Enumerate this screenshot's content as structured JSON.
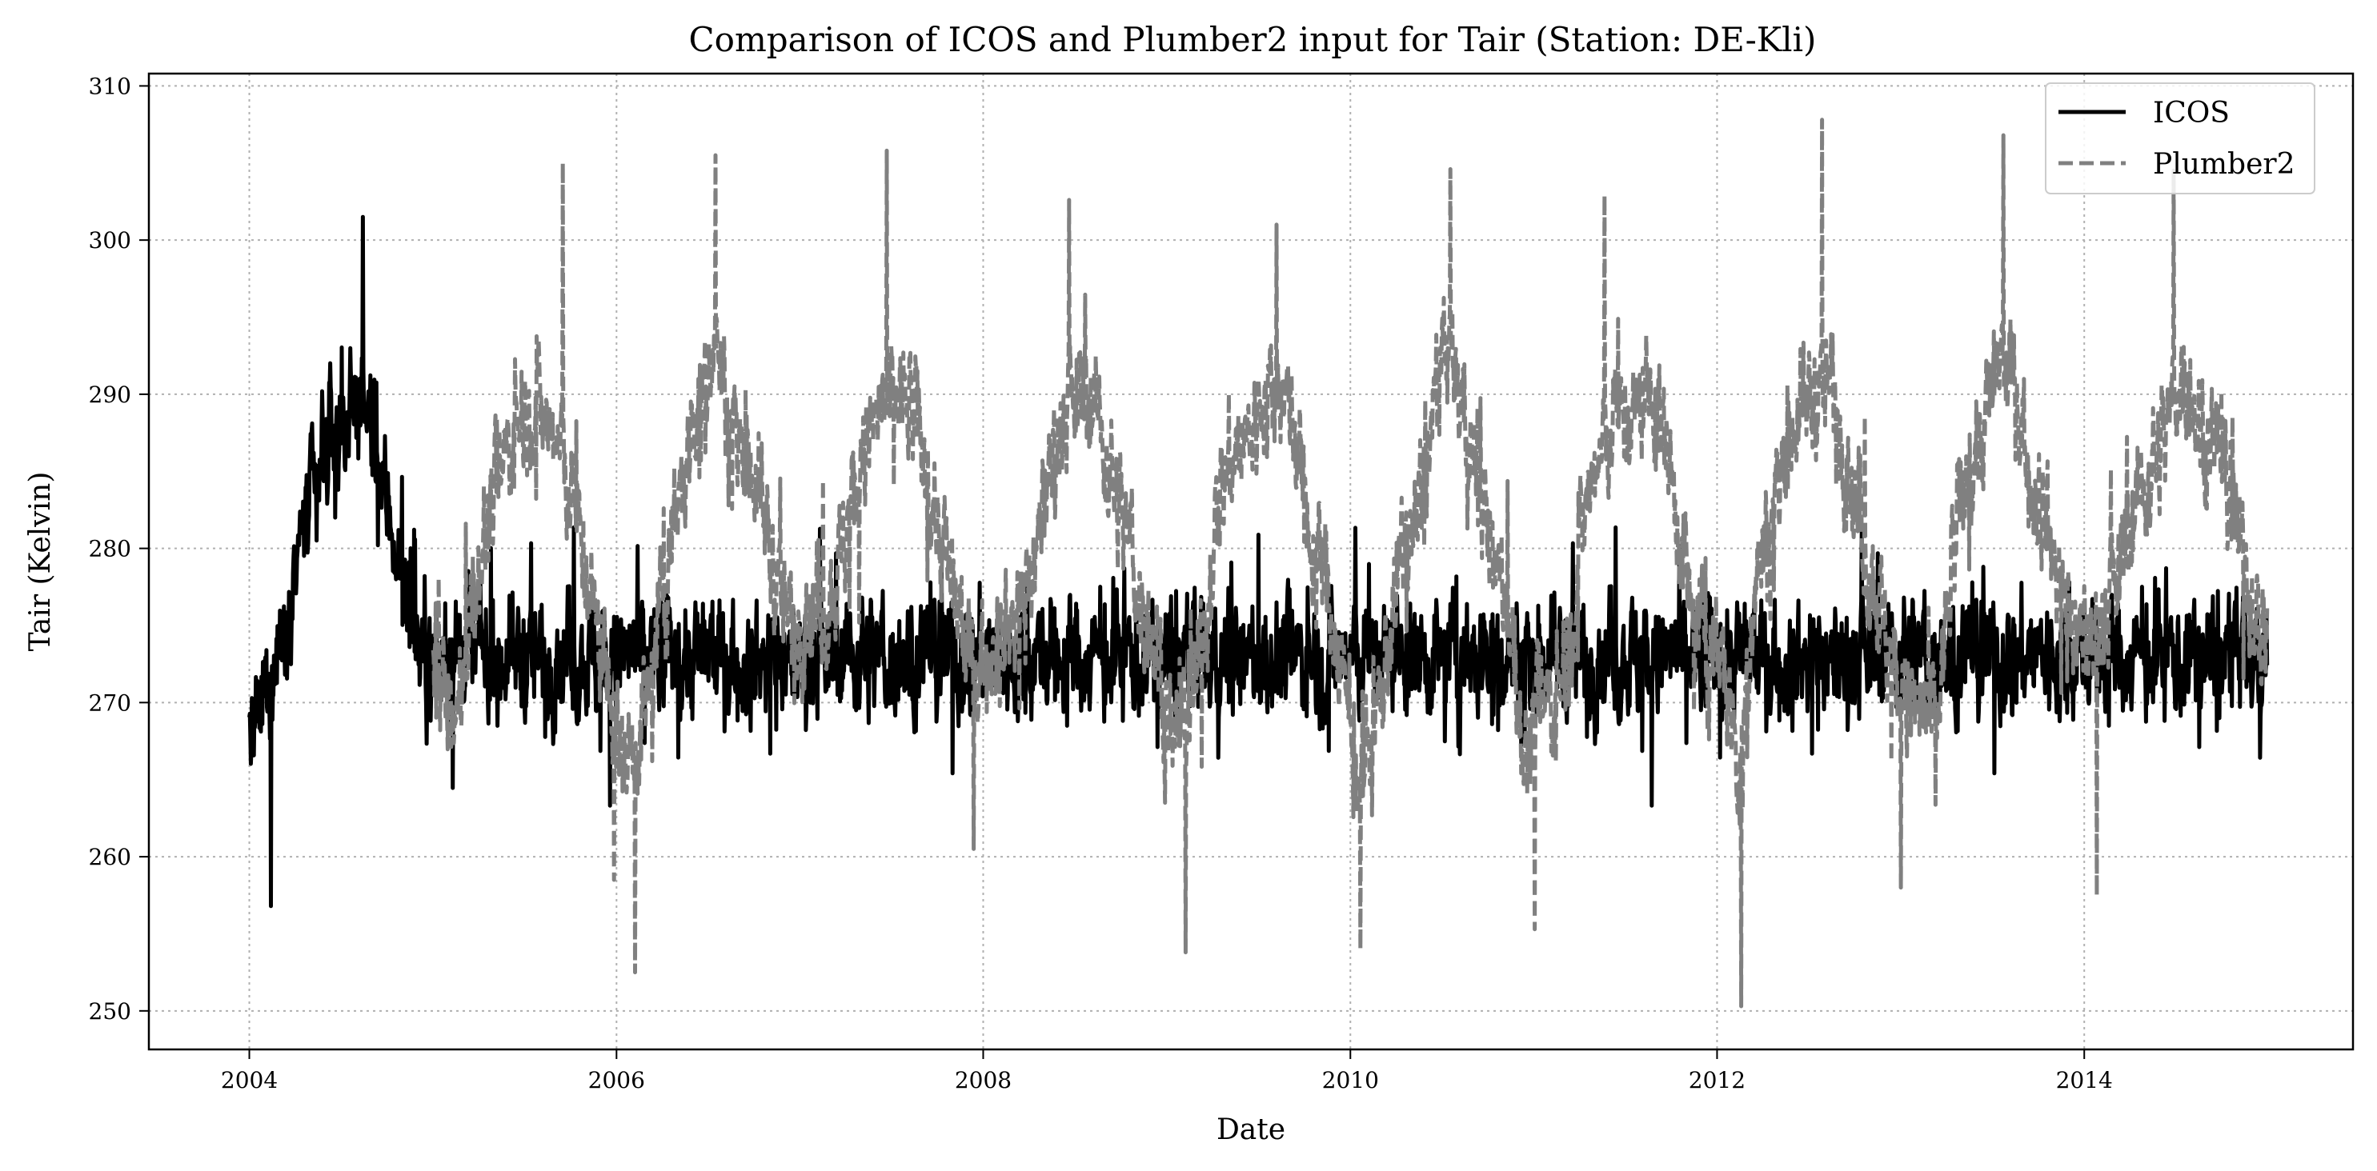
{
  "chart_data": {
    "type": "line",
    "title": "Comparison of ICOS and Plumber2 input for Tair (Station: DE-Kli)",
    "xlabel": "Date",
    "ylabel": "Tair (Kelvin)",
    "xlim": [
      "2003-06-15",
      "2015-06-20"
    ],
    "ylim": [
      247.5,
      310.8
    ],
    "x_ticks": [
      "2004",
      "2006",
      "2008",
      "2010",
      "2012",
      "2014"
    ],
    "y_ticks": [
      250,
      260,
      270,
      280,
      290,
      300,
      310
    ],
    "grid": true,
    "legend_position": "top-right",
    "series": [
      {
        "name": "ICOS",
        "color": "#000000",
        "linestyle": "solid",
        "x_range": [
          "2004-01-01",
          "2014-12-31"
        ],
        "monthly_mean": [
          [
            "2004-01",
            268
          ],
          [
            "2004-02",
            272
          ],
          [
            "2004-03",
            276
          ],
          [
            "2004-04",
            281
          ],
          [
            "2004-05",
            284
          ],
          [
            "2004-06",
            287
          ],
          [
            "2004-07",
            289
          ],
          [
            "2004-08",
            290
          ],
          [
            "2004-09",
            285
          ],
          [
            "2004-10",
            281
          ],
          [
            "2004-11",
            276
          ],
          [
            "2004-12",
            273
          ]
        ],
        "annual_extremes": [
          [
            2004,
            256.8,
            301.5
          ]
        ]
      },
      {
        "name": "Plumber2",
        "color": "#808080",
        "linestyle": "dashed",
        "x_range": [
          "2005-01-01",
          "2014-12-31"
        ],
        "monthly_mean": [
          [
            "2005-01",
            272
          ],
          [
            "2005-02",
            268
          ],
          [
            "2005-03",
            276
          ],
          [
            "2005-04",
            281
          ],
          [
            "2005-05",
            285
          ],
          [
            "2005-06",
            288
          ],
          [
            "2005-07",
            290
          ],
          [
            "2005-08",
            288
          ],
          [
            "2005-09",
            286
          ],
          [
            "2005-10",
            282
          ],
          [
            "2005-11",
            276
          ],
          [
            "2005-12",
            271
          ],
          [
            "2006-01",
            266
          ],
          [
            "2006-02",
            268
          ],
          [
            "2006-03",
            272
          ],
          [
            "2006-04",
            280
          ],
          [
            "2006-05",
            285
          ],
          [
            "2006-06",
            289
          ],
          [
            "2006-07",
            294
          ],
          [
            "2006-08",
            288
          ],
          [
            "2006-09",
            287
          ],
          [
            "2006-10",
            283
          ],
          [
            "2006-11",
            278
          ],
          [
            "2006-12",
            275
          ],
          [
            "2007-01",
            276
          ],
          [
            "2007-02",
            276
          ],
          [
            "2007-03",
            278
          ],
          [
            "2007-04",
            283
          ],
          [
            "2007-05",
            287
          ],
          [
            "2007-06",
            289
          ],
          [
            "2007-07",
            290
          ],
          [
            "2007-08",
            289
          ],
          [
            "2007-09",
            284
          ],
          [
            "2007-10",
            280
          ],
          [
            "2007-11",
            275
          ],
          [
            "2007-12",
            272
          ],
          [
            "2008-01",
            274
          ],
          [
            "2008-02",
            275
          ],
          [
            "2008-03",
            276
          ],
          [
            "2008-04",
            280
          ],
          [
            "2008-05",
            286
          ],
          [
            "2008-06",
            289
          ],
          [
            "2008-07",
            290
          ],
          [
            "2008-08",
            289
          ],
          [
            "2008-09",
            284
          ],
          [
            "2008-10",
            281
          ],
          [
            "2008-11",
            276
          ],
          [
            "2008-12",
            273
          ],
          [
            "2009-01",
            267
          ],
          [
            "2009-02",
            270
          ],
          [
            "2009-03",
            274
          ],
          [
            "2009-04",
            284
          ],
          [
            "2009-05",
            286
          ],
          [
            "2009-06",
            287
          ],
          [
            "2009-07",
            290
          ],
          [
            "2009-08",
            291
          ],
          [
            "2009-09",
            287
          ],
          [
            "2009-10",
            280
          ],
          [
            "2009-11",
            278
          ],
          [
            "2009-12",
            272
          ],
          [
            "2010-01",
            265
          ],
          [
            "2010-02",
            267
          ],
          [
            "2010-03",
            274
          ],
          [
            "2010-04",
            280
          ],
          [
            "2010-05",
            282
          ],
          [
            "2010-06",
            289
          ],
          [
            "2010-07",
            293
          ],
          [
            "2010-08",
            289
          ],
          [
            "2010-09",
            284
          ],
          [
            "2010-10",
            279
          ],
          [
            "2010-11",
            276
          ],
          [
            "2010-12",
            266
          ],
          [
            "2011-01",
            270
          ],
          [
            "2011-02",
            270
          ],
          [
            "2011-03",
            275
          ],
          [
            "2011-04",
            283
          ],
          [
            "2011-05",
            286
          ],
          [
            "2011-06",
            289
          ],
          [
            "2011-07",
            288
          ],
          [
            "2011-08",
            290
          ],
          [
            "2011-09",
            288
          ],
          [
            "2011-10",
            282
          ],
          [
            "2011-11",
            275
          ],
          [
            "2011-12",
            274
          ],
          [
            "2012-01",
            273
          ],
          [
            "2012-02",
            264
          ],
          [
            "2012-03",
            278
          ],
          [
            "2012-04",
            281
          ],
          [
            "2012-05",
            287
          ],
          [
            "2012-06",
            289
          ],
          [
            "2012-07",
            290
          ],
          [
            "2012-08",
            291
          ],
          [
            "2012-09",
            286
          ],
          [
            "2012-10",
            281
          ],
          [
            "2012-11",
            277
          ],
          [
            "2012-12",
            272
          ],
          [
            "2013-01",
            270
          ],
          [
            "2013-02",
            269
          ],
          [
            "2013-03",
            269
          ],
          [
            "2013-04",
            280
          ],
          [
            "2013-05",
            285
          ],
          [
            "2013-06",
            288
          ],
          [
            "2013-07",
            292
          ],
          [
            "2013-08",
            291
          ],
          [
            "2013-09",
            285
          ],
          [
            "2013-10",
            283
          ],
          [
            "2013-11",
            277
          ],
          [
            "2013-12",
            275
          ],
          [
            "2014-01",
            274
          ],
          [
            "2014-02",
            276
          ],
          [
            "2014-03",
            279
          ],
          [
            "2014-04",
            283
          ],
          [
            "2014-05",
            285
          ],
          [
            "2014-06",
            288
          ],
          [
            "2014-07",
            292
          ],
          [
            "2014-08",
            288
          ],
          [
            "2014-09",
            287
          ],
          [
            "2014-10",
            284
          ],
          [
            "2014-11",
            279
          ],
          [
            "2014-12",
            275
          ]
        ],
        "annual_extremes": [
          [
            2005,
            258.5,
            305
          ],
          [
            2006,
            252.5,
            305.5
          ],
          [
            2007,
            260.5,
            305.8
          ],
          [
            2008,
            263.5,
            302.6
          ],
          [
            2009,
            253.8,
            301
          ],
          [
            2010,
            254,
            304.6
          ],
          [
            2011,
            255.3,
            302.9
          ],
          [
            2012,
            250.3,
            307.8
          ],
          [
            2013,
            258,
            306.8
          ],
          [
            2014,
            257.5,
            304.5
          ]
        ]
      }
    ]
  }
}
